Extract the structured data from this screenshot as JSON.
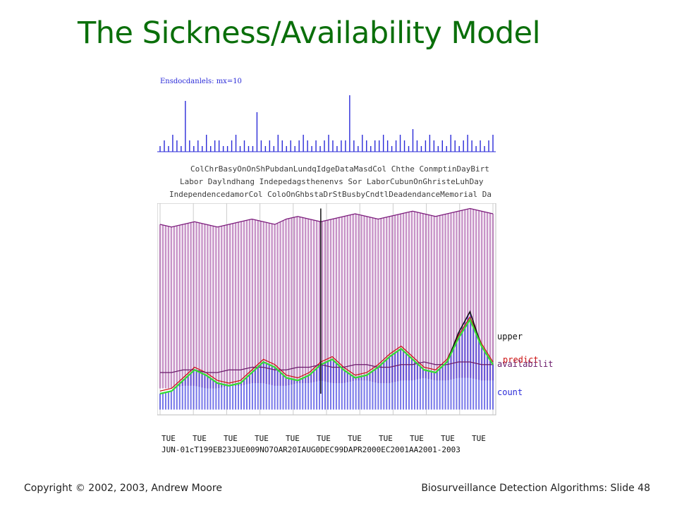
{
  "slide": {
    "title": "The Sickness/Availability Model",
    "footer_left": "Copyright © 2002, 2003, Andrew Moore",
    "footer_right": "Biosurveillance Detection Algorithms: Slide 48"
  },
  "figure": {
    "top_plot_label": "Ensdocdanlels: mx=10",
    "event_labels": [
      "ColChrBasyOnOnShPubdanLundqIdgeDataMasdCol Chthe ConmptinDayBirt",
      "Labor Daylndhang Indepedagsthenenvs Sor LaborCubunOnGhristeLuhDay",
      "IndependencedamorCol ColoOnGhbstaDrStBusbyCndtlDeadendanceMemorial Da"
    ],
    "series_labels": {
      "upper": "upper",
      "predict": "predict",
      "availability": "availabilit",
      "count": "count"
    },
    "axis_day_labels": [
      "TUE",
      "TUE",
      "TUE",
      "TUE",
      "TUE",
      "TUE",
      "TUE",
      "TUE",
      "TUE",
      "TUE",
      "TUE"
    ],
    "axis_date_overlap": "JUN-01cT199EB23JUE009NO7OAR20IAUG0DEC99DAPR2000EC2001AA2001-2003",
    "colors": {
      "title_green": "#0a6f0a",
      "upper_purple": "#8b1a8b",
      "count_blue": "#2a2ad8",
      "predict_green": "#33dd33",
      "predict_red": "#cc1111"
    }
  },
  "chart_data": [
    {
      "type": "bar",
      "title": "Ensdocdanlels: mx=10",
      "note": "sparse spike counts over time (blue)",
      "values": [
        1,
        2,
        1,
        3,
        2,
        1,
        9,
        2,
        1,
        2,
        1,
        3,
        1,
        2,
        2,
        1,
        1,
        2,
        3,
        1,
        2,
        1,
        1,
        7,
        2,
        1,
        2,
        1,
        3,
        2,
        1,
        2,
        1,
        2,
        3,
        2,
        1,
        2,
        1,
        2,
        3,
        2,
        1,
        2,
        2,
        10,
        2,
        1,
        3,
        2,
        1,
        2,
        2,
        3,
        2,
        1,
        2,
        3,
        2,
        1,
        4,
        2,
        1,
        2,
        3,
        2,
        1,
        2,
        1,
        3,
        2,
        1,
        2,
        3,
        2,
        1,
        2,
        1,
        2,
        3
      ]
    },
    {
      "type": "line",
      "series": [
        {
          "name": "upper",
          "values": [
            72,
            71,
            72,
            73,
            72,
            71,
            72,
            73,
            74,
            73,
            72,
            74,
            75,
            74,
            73,
            74,
            75,
            76,
            75,
            74,
            75,
            76,
            77,
            76,
            75,
            76,
            77,
            78,
            77,
            76
          ]
        },
        {
          "name": "predict",
          "values": [
            9,
            10,
            14,
            18,
            16,
            13,
            12,
            13,
            17,
            21,
            19,
            15,
            14,
            16,
            20,
            22,
            18,
            15,
            16,
            19,
            23,
            26,
            22,
            18,
            17,
            21,
            30,
            37,
            27,
            20
          ]
        },
        {
          "name": "availabilit",
          "values": [
            16,
            16,
            17,
            17,
            16,
            16,
            17,
            17,
            18,
            18,
            17,
            17,
            18,
            18,
            19,
            18,
            18,
            19,
            19,
            18,
            18,
            19,
            19,
            20,
            19,
            19,
            20,
            20,
            19,
            19
          ]
        },
        {
          "name": "count",
          "values": [
            8,
            9,
            13,
            17,
            15,
            12,
            11,
            12,
            16,
            20,
            18,
            14,
            13,
            15,
            19,
            21,
            17,
            14,
            15,
            18,
            22,
            25,
            21,
            17,
            16,
            20,
            31,
            39,
            26,
            19
          ]
        }
      ],
      "x_tick_labels": [
        "TUE",
        "TUE",
        "TUE",
        "TUE",
        "TUE",
        "TUE",
        "TUE",
        "TUE",
        "TUE",
        "TUE",
        "TUE"
      ]
    }
  ]
}
